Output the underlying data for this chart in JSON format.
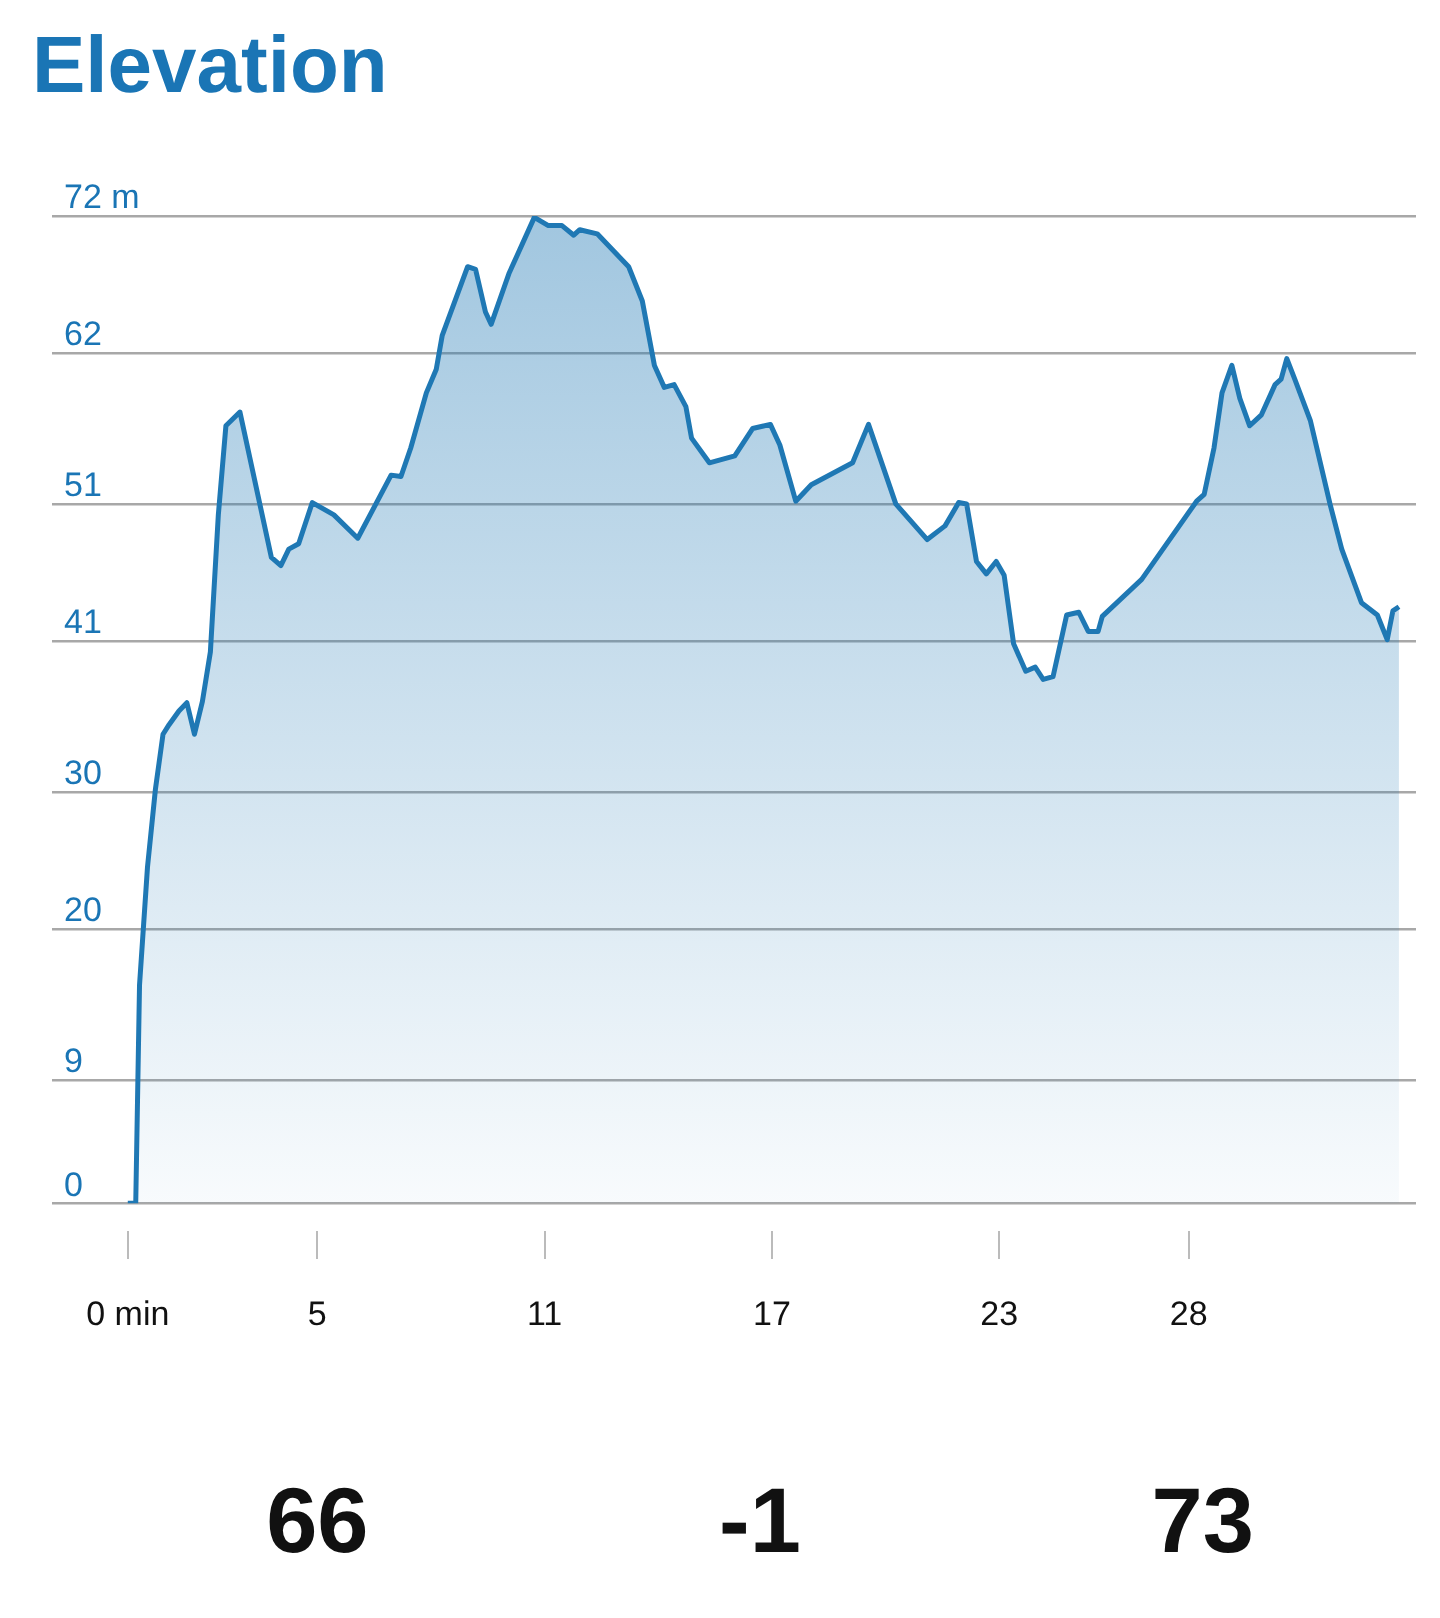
{
  "chart_data": {
    "type": "area",
    "title": "Elevation",
    "x": [
      0,
      0.21,
      0.31,
      0.52,
      0.73,
      0.93,
      1.09,
      1.35,
      1.56,
      1.76,
      1.97,
      2.18,
      2.39,
      2.59,
      2.96,
      3.79,
      4.04,
      4.25,
      4.51,
      4.87,
      5.44,
      6.07,
      6.95,
      7.21,
      7.47,
      7.88,
      8.14,
      8.3,
      8.97,
      9.18,
      9.44,
      9.59,
      10.06,
      10.73,
      11.1,
      11.46,
      11.77,
      11.93,
      12.39,
      13.22,
      13.58,
      13.9,
      14.16,
      14.42,
      14.73,
      14.88,
      15.35,
      16.02,
      16.49,
      16.96,
      17.21,
      17.63,
      18.04,
      19.13,
      19.55,
      20.27,
      21.1,
      21.57,
      21.93,
      22.14,
      22.4,
      22.66,
      22.92,
      23.13,
      23.38,
      23.7,
      23.95,
      24.16,
      24.42,
      24.78,
      25.1,
      25.35,
      25.61,
      25.72,
      26.76,
      28.21,
      28.41,
      28.67,
      28.88,
      29.14,
      29.35,
      29.61,
      29.92,
      30.28,
      30.44,
      30.59,
      30.8,
      31.21,
      31.73,
      32.04,
      32.56,
      32.98,
      33.24,
      33.39,
      33.55
    ],
    "series": [
      {
        "color": "#1f78b4",
        "values": [
          0,
          0,
          15.9,
          24.5,
          30.2,
          34.2,
          34.9,
          35.9,
          36.5,
          34.2,
          36.6,
          40.2,
          50.2,
          56.7,
          57.7,
          47.1,
          46.5,
          47.7,
          48.1,
          51.1,
          50.2,
          48.5,
          53.1,
          53.0,
          55.1,
          59.1,
          60.8,
          63.3,
          68.3,
          68.1,
          65.0,
          64.1,
          67.8,
          71.9,
          71.3,
          71.3,
          70.6,
          71.0,
          70.7,
          68.3,
          65.8,
          61.1,
          59.5,
          59.7,
          58.1,
          55.8,
          54.0,
          54.5,
          56.5,
          56.8,
          55.3,
          51.2,
          52.4,
          54.0,
          56.8,
          51.0,
          48.4,
          49.4,
          51.1,
          51.0,
          46.8,
          45.9,
          46.8,
          45.8,
          40.8,
          38.8,
          39.1,
          38.2,
          38.4,
          42.9,
          43.1,
          41.7,
          41.7,
          42.8,
          45.5,
          51.2,
          51.7,
          55.1,
          59.1,
          61.1,
          58.7,
          56.7,
          57.5,
          59.7,
          60.1,
          61.6,
          60.1,
          57.1,
          51.0,
          47.7,
          43.8,
          42.9,
          41.1,
          43.2,
          43.5
        ]
      }
    ],
    "xlim": [
      -2,
      34
    ],
    "xticks": [
      {
        "value": 0,
        "label": "0 min"
      },
      5,
      11,
      17,
      23,
      28
    ],
    "ylim": [
      0,
      72
    ],
    "yticks": [
      0,
      9,
      20,
      30,
      41,
      51,
      62,
      {
        "value": 72,
        "label": "72 m"
      }
    ],
    "grid": "y",
    "annotations": [
      "66",
      "-1",
      "73"
    ]
  }
}
